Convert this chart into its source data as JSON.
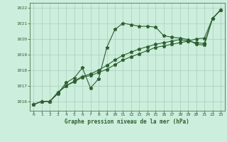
{
  "title": "Graphe pression niveau de la mer (hPa)",
  "bg_color": "#cceedd",
  "grid_color": "#aaccbb",
  "line_color": "#2d6030",
  "x_ticks": [
    0,
    1,
    2,
    3,
    4,
    5,
    6,
    7,
    8,
    9,
    10,
    11,
    12,
    13,
    14,
    15,
    16,
    17,
    18,
    19,
    20,
    21,
    22,
    23
  ],
  "ylim": [
    1015.4,
    1022.3
  ],
  "y_ticks": [
    1016,
    1017,
    1018,
    1019,
    1020,
    1021,
    1022
  ],
  "series1": [
    1015.8,
    1016.0,
    1016.0,
    1016.5,
    1017.2,
    1017.5,
    1018.15,
    1016.85,
    1017.45,
    1019.45,
    1020.6,
    1021.0,
    1020.9,
    1020.8,
    1020.8,
    1020.75,
    1020.2,
    1020.1,
    1020.05,
    1019.95,
    1019.65,
    1019.6,
    1021.3,
    1021.85
  ],
  "series2": [
    1015.8,
    1016.0,
    1016.0,
    1016.55,
    1017.0,
    1017.25,
    1017.55,
    1017.65,
    1017.85,
    1018.05,
    1018.35,
    1018.65,
    1018.85,
    1019.05,
    1019.25,
    1019.45,
    1019.55,
    1019.65,
    1019.75,
    1019.85,
    1020.0,
    1020.05,
    1021.3,
    1021.85
  ],
  "series3": [
    1015.8,
    1016.0,
    1016.0,
    1016.6,
    1017.0,
    1017.3,
    1017.6,
    1017.75,
    1018.0,
    1018.3,
    1018.65,
    1018.95,
    1019.15,
    1019.35,
    1019.5,
    1019.65,
    1019.75,
    1019.85,
    1019.95,
    1019.85,
    1019.75,
    1019.7,
    1021.3,
    1021.85
  ]
}
